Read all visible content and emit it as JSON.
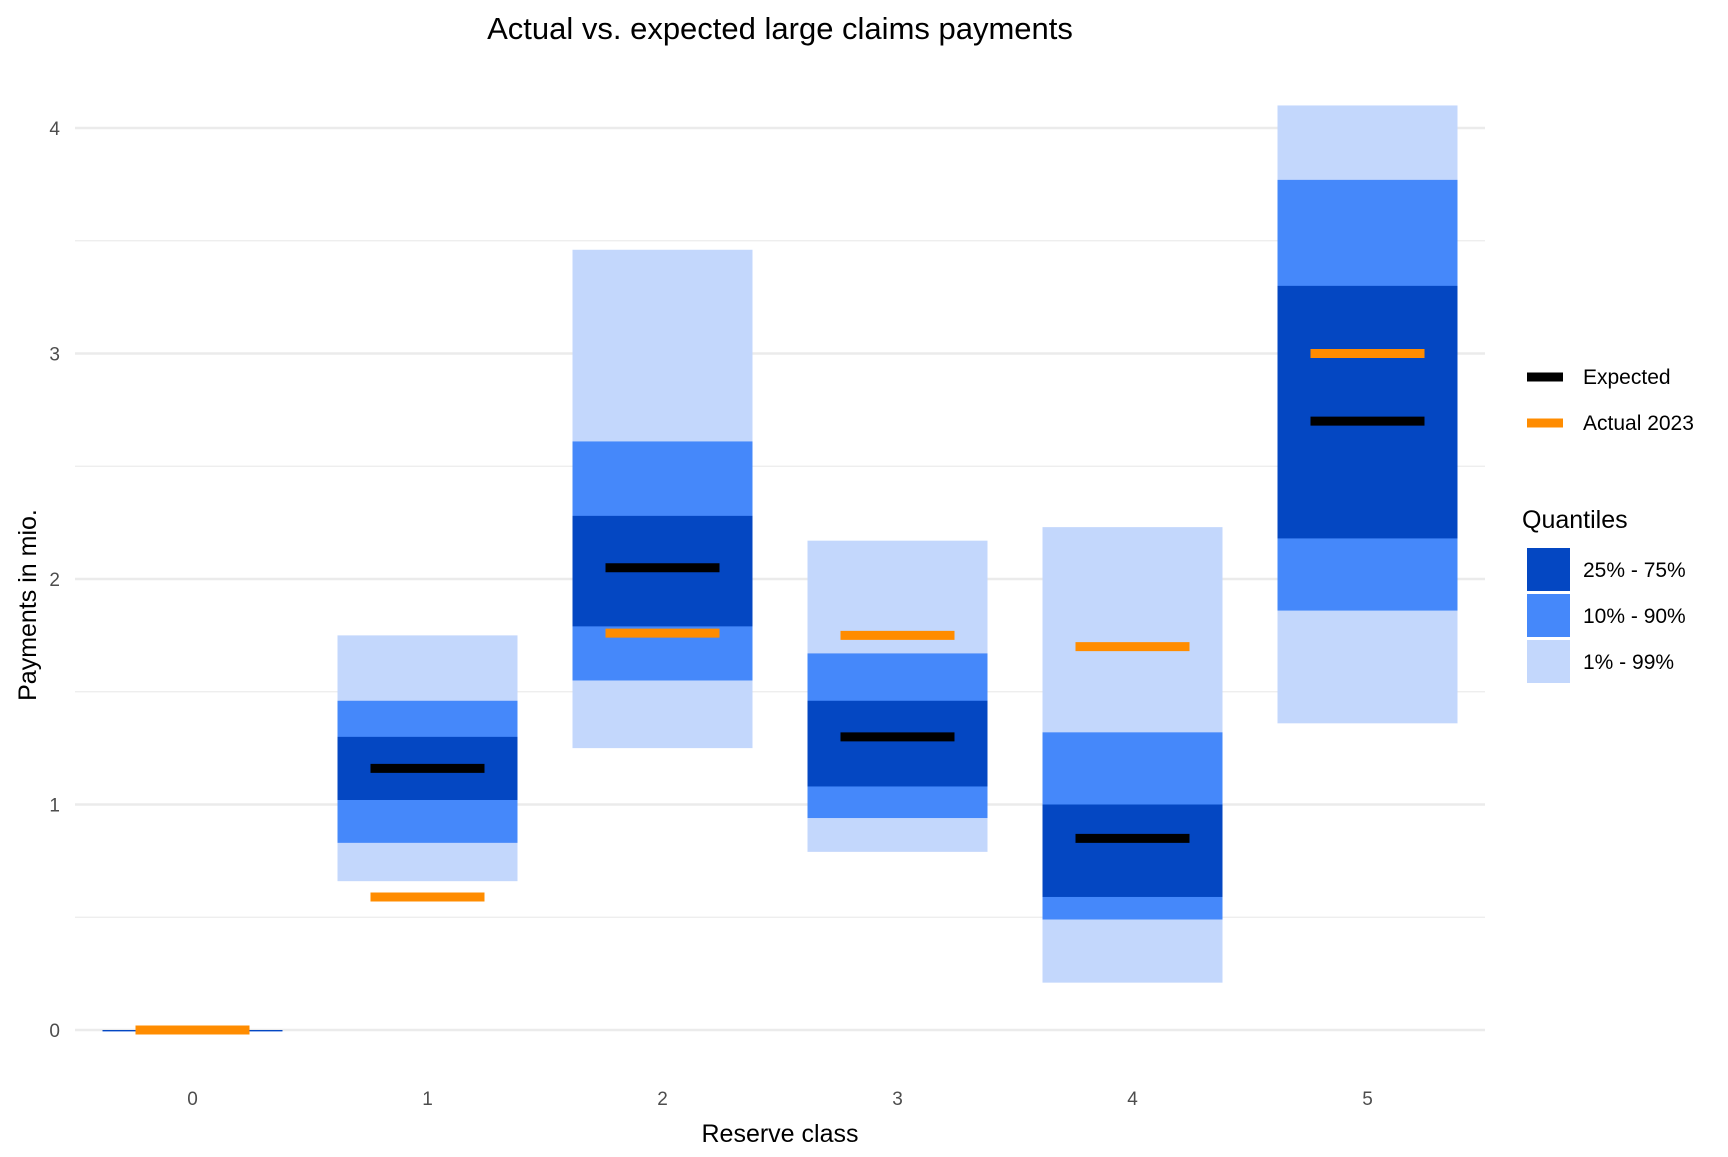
{
  "chart_data": {
    "type": "bar",
    "title": "Actual vs. expected large claims payments",
    "xlabel": "Reserve class",
    "ylabel": "Payments in mio.",
    "categories": [
      "0",
      "1",
      "2",
      "3",
      "4",
      "5"
    ],
    "ylim": [
      -0.2,
      4.15
    ],
    "yticks": [
      "0",
      "1",
      "2",
      "3",
      "4"
    ],
    "grid": true,
    "legend_position": "right",
    "quantile_bands": [
      {
        "name": "1% - 99%",
        "color": "#c3d7fc",
        "ranges": [
          [
            0,
            0
          ],
          [
            0.66,
            1.75
          ],
          [
            1.25,
            3.46
          ],
          [
            0.79,
            2.17
          ],
          [
            0.21,
            2.23
          ],
          [
            1.36,
            4.1
          ]
        ]
      },
      {
        "name": "10% - 90%",
        "color": "#4588fa",
        "ranges": [
          [
            0,
            0
          ],
          [
            0.83,
            1.46
          ],
          [
            1.55,
            2.61
          ],
          [
            0.94,
            1.67
          ],
          [
            0.49,
            1.32
          ],
          [
            1.86,
            3.77
          ]
        ]
      },
      {
        "name": "25% - 75%",
        "color": "#0447c2",
        "ranges": [
          [
            0,
            0
          ],
          [
            1.02,
            1.3
          ],
          [
            1.79,
            2.28
          ],
          [
            1.08,
            1.46
          ],
          [
            0.59,
            1.0
          ],
          [
            2.18,
            3.3
          ]
        ]
      }
    ],
    "series": [
      {
        "name": "Expected",
        "color": "#000000",
        "values": [
          0,
          1.16,
          2.05,
          1.3,
          0.85,
          2.7
        ]
      },
      {
        "name": "Actual 2023",
        "color": "#ff8c00",
        "values": [
          0,
          0.59,
          1.76,
          1.75,
          1.7,
          3.0
        ]
      }
    ],
    "legend": {
      "lines": [
        "Expected",
        "Actual 2023"
      ],
      "quantiles_title": "Quantiles",
      "quantiles": [
        "25% - 75%",
        "10% - 90%",
        "1% - 99%"
      ]
    },
    "colors": {
      "q_inner": "#0447c2",
      "q_mid": "#4588fa",
      "q_outer": "#c3d7fc",
      "expected": "#000000",
      "actual": "#ff8c00",
      "grid": "#ebebeb"
    }
  }
}
